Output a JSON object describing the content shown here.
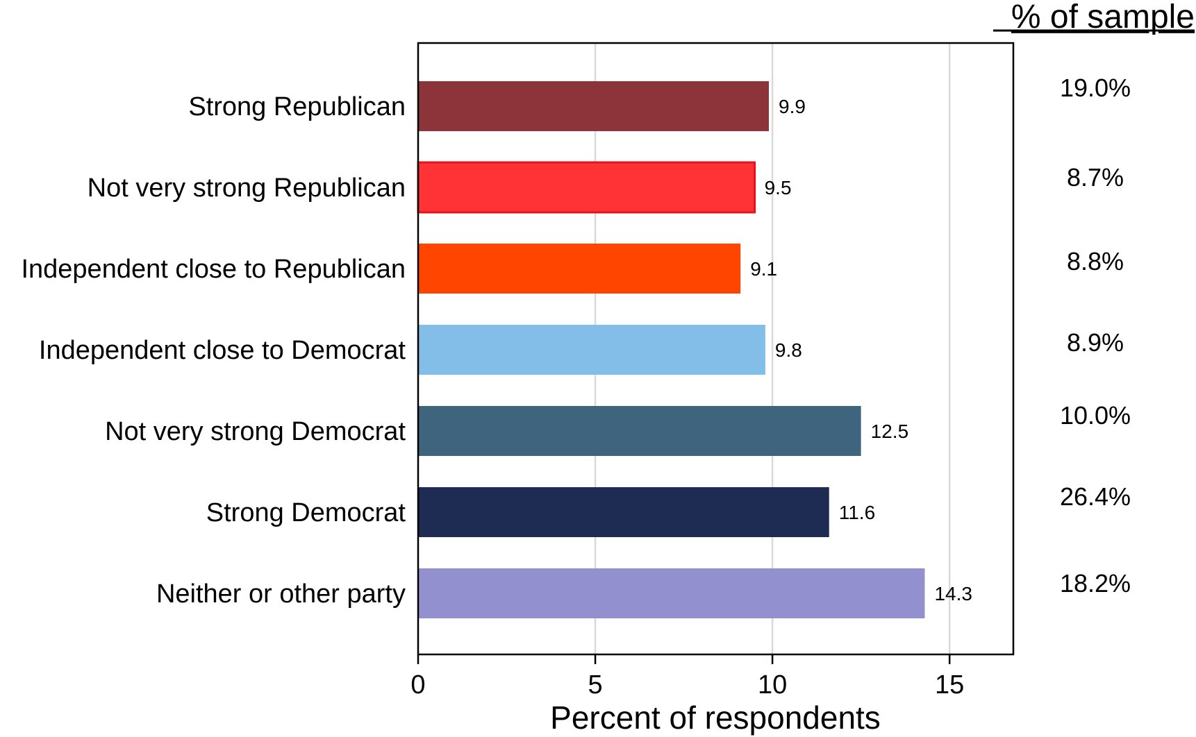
{
  "chart_data": {
    "type": "bar",
    "orientation": "horizontal",
    "categories": [
      "Strong Republican",
      "Not very strong Republican",
      "Independent close to Republican",
      "Independent close to Democrat",
      "Not very strong Democrat",
      "Strong Democrat",
      "Neither or other party"
    ],
    "values": [
      9.9,
      9.5,
      9.1,
      9.8,
      12.5,
      11.6,
      14.3
    ],
    "value_labels": [
      "9.9",
      "9.5",
      "9.1",
      "9.8",
      "12.5",
      "11.6",
      "14.3"
    ],
    "colors": [
      "#8C343A",
      "#FF3236",
      "#FF4500",
      "#82BEE8",
      "#3F647E",
      "#1E2B53",
      "#9390D0"
    ],
    "xlabel": "Percent of respondents",
    "ylabel": "",
    "xlim": [
      0,
      16.8
    ],
    "xticks": [
      0,
      5,
      10,
      15
    ],
    "xtick_labels": [
      "0",
      "5",
      "10",
      "15"
    ],
    "grid": "vertical",
    "sample_header": "% of sample",
    "sample_values": [
      "19.0%",
      "8.7%",
      "8.8%",
      "8.9%",
      "10.0%",
      "26.4%",
      "18.2%"
    ]
  }
}
